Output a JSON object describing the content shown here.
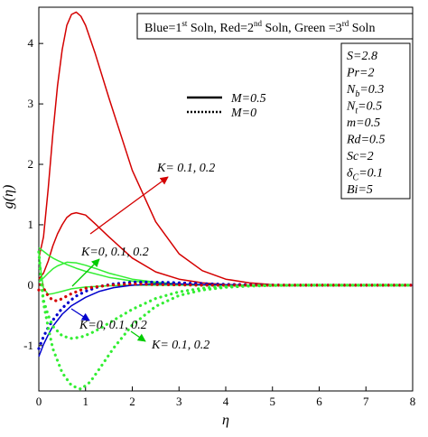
{
  "chart_data": {
    "type": "line",
    "xlabel": "η",
    "ylabel": "g(η)",
    "xlim": [
      0,
      8
    ],
    "ylim": [
      -1.75,
      4.6
    ],
    "x_ticks": [
      "0",
      "1",
      "2",
      "3",
      "4",
      "5",
      "6",
      "7",
      "8"
    ],
    "y_ticks": [
      "-1",
      "0",
      "1",
      "2",
      "3",
      "4"
    ],
    "legend_title": {
      "p1": "Blue=1",
      "s1": "st",
      "p2": " Soln, Red=2",
      "s2": "nd",
      "p3": " Soln, Green =3",
      "s3": "rd",
      "p4": " Soln"
    },
    "line_legend": {
      "solid_label": "M=0.5",
      "dotted_label": "M=0"
    },
    "params": [
      {
        "lead": "S",
        "sub": "",
        "val": "=2.8"
      },
      {
        "lead": "Pr",
        "sub": "",
        "val": "=2"
      },
      {
        "lead": "N",
        "sub": "b",
        "val": "=0.3"
      },
      {
        "lead": "N",
        "sub": "t",
        "val": "=0.5"
      },
      {
        "lead": "m",
        "sub": "",
        "val": "=0.5"
      },
      {
        "lead": "Rd",
        "sub": "",
        "val": "=0.5"
      },
      {
        "lead": "Sc",
        "sub": "",
        "val": "=2"
      },
      {
        "lead": "δ",
        "sub": "C",
        "val": "=0.1"
      },
      {
        "lead": "Bi",
        "sub": "",
        "val": "=5"
      }
    ],
    "annotations": [
      {
        "id": "ann-red",
        "text": "K= 0.1, 0.2",
        "color": "#d40000"
      },
      {
        "id": "ann-green-up",
        "text": "K=0, 0.1, 0.2",
        "color": "#00cc00"
      },
      {
        "id": "ann-blue",
        "text": "K=0, 0.1, 0.2",
        "color": "#0000cc"
      },
      {
        "id": "ann-green-dn",
        "text": "K= 0.1, 0.2",
        "color": "#00cc00"
      }
    ],
    "series": [
      {
        "id": "red-solid-1",
        "color": "#d40000",
        "style": "solid",
        "x": [
          0,
          0.1,
          0.2,
          0.3,
          0.4,
          0.5,
          0.6,
          0.7,
          0.8,
          0.9,
          1.0,
          1.2,
          1.5,
          2.0,
          2.5,
          3.0,
          3.5,
          4.0,
          4.5,
          5.0,
          5.5,
          6.0,
          8.0
        ],
        "y": [
          0.45,
          0.8,
          1.6,
          2.5,
          3.3,
          3.9,
          4.3,
          4.48,
          4.52,
          4.45,
          4.3,
          3.85,
          3.1,
          1.9,
          1.05,
          0.52,
          0.24,
          0.1,
          0.04,
          0.01,
          0.0,
          0.0,
          0.0
        ]
      },
      {
        "id": "red-solid-2",
        "color": "#d40000",
        "style": "solid",
        "x": [
          0,
          0.1,
          0.2,
          0.3,
          0.4,
          0.5,
          0.6,
          0.7,
          0.8,
          1.0,
          1.2,
          1.5,
          2.0,
          2.5,
          3.0,
          3.5,
          4.0,
          4.5,
          5.0,
          8.0
        ],
        "y": [
          0.1,
          0.2,
          0.4,
          0.65,
          0.85,
          1.0,
          1.12,
          1.18,
          1.2,
          1.16,
          1.02,
          0.8,
          0.45,
          0.22,
          0.1,
          0.04,
          0.01,
          0.0,
          0.0,
          0.0
        ]
      },
      {
        "id": "green-solid-1",
        "color": "#33ee33",
        "style": "solid",
        "x": [
          0,
          0.1,
          0.2,
          0.3,
          0.4,
          0.6,
          0.8,
          1.0,
          1.5,
          2.0,
          2.5,
          3.0,
          3.5,
          4.0,
          4.5,
          5.0,
          8.0
        ],
        "y": [
          0.62,
          0.56,
          0.5,
          0.45,
          0.41,
          0.34,
          0.28,
          0.23,
          0.13,
          0.07,
          0.035,
          0.015,
          0.006,
          0.002,
          0.0,
          0.0,
          0.0
        ]
      },
      {
        "id": "green-solid-2",
        "color": "#33ee33",
        "style": "solid",
        "x": [
          0,
          0.1,
          0.2,
          0.3,
          0.4,
          0.6,
          0.8,
          1.0,
          1.2,
          1.5,
          2.0,
          2.5,
          3.0,
          3.5,
          4.0,
          4.5,
          5.0,
          8.0
        ],
        "y": [
          0.05,
          0.12,
          0.2,
          0.27,
          0.32,
          0.38,
          0.37,
          0.33,
          0.28,
          0.2,
          0.1,
          0.05,
          0.02,
          0.008,
          0.003,
          0.0,
          0.0,
          0.0
        ]
      },
      {
        "id": "green-solid-3",
        "color": "#33ee33",
        "style": "solid",
        "x": [
          0,
          0.05,
          0.1,
          0.2,
          0.3,
          0.5,
          0.7,
          1.0,
          1.5,
          2.0,
          2.5,
          3.0,
          3.5,
          4.0,
          5.0,
          8.0
        ],
        "y": [
          0.55,
          0.2,
          -0.05,
          -0.15,
          -0.14,
          -0.1,
          -0.06,
          -0.03,
          -0.01,
          0.0,
          0.0,
          0.0,
          0.0,
          0.0,
          0.0,
          0.0
        ]
      },
      {
        "id": "blue-solid",
        "color": "#0000cc",
        "style": "solid",
        "x": [
          0,
          0.1,
          0.2,
          0.3,
          0.5,
          0.7,
          1.0,
          1.3,
          1.6,
          2.0,
          2.5,
          3.0,
          3.5,
          4.0,
          4.5,
          5.0,
          5.5,
          8.0
        ],
        "y": [
          -1.18,
          -0.98,
          -0.82,
          -0.68,
          -0.48,
          -0.34,
          -0.2,
          -0.1,
          -0.04,
          0.0,
          0.02,
          0.02,
          0.01,
          0.005,
          0.0,
          0.0,
          0.0,
          0.0
        ]
      },
      {
        "id": "blue-dotted",
        "color": "#0000cc",
        "style": "dotted",
        "x": [
          0,
          0.1,
          0.2,
          0.3,
          0.5,
          0.7,
          0.8,
          1.0,
          1.3,
          1.6,
          2.0,
          2.5,
          3.0,
          3.5,
          4.0,
          4.5,
          5.0,
          5.5,
          6.0,
          8.0
        ],
        "y": [
          -1.05,
          -0.85,
          -0.7,
          -0.58,
          -0.38,
          -0.24,
          -0.18,
          -0.1,
          -0.02,
          0.02,
          0.05,
          0.05,
          0.04,
          0.025,
          0.015,
          0.008,
          0.003,
          0.0,
          0.0,
          0.0
        ]
      },
      {
        "id": "red-dotted",
        "color": "#d40000",
        "style": "dotted",
        "x": [
          0,
          0.05,
          0.1,
          0.2,
          0.3,
          0.4,
          0.5,
          0.7,
          1.0,
          1.5,
          2.0,
          2.5,
          3.0,
          3.5,
          4.0,
          8.0
        ],
        "y": [
          -0.08,
          0.05,
          -0.05,
          -0.18,
          -0.25,
          -0.26,
          -0.22,
          -0.14,
          -0.05,
          0.0,
          0.02,
          0.01,
          0.005,
          0.0,
          0.0,
          0.0
        ]
      },
      {
        "id": "green-dotted-1",
        "color": "#33ee33",
        "style": "dotted",
        "x": [
          0,
          0.05,
          0.1,
          0.2,
          0.3,
          0.5,
          0.7,
          0.9,
          1.1,
          1.3,
          1.6,
          2.0,
          2.5,
          3.0,
          3.5,
          4.0,
          4.5,
          5.0,
          5.5,
          6.0,
          8.0
        ],
        "y": [
          0.55,
          0.1,
          -0.3,
          -0.7,
          -1.05,
          -1.45,
          -1.66,
          -1.72,
          -1.6,
          -1.38,
          -1.04,
          -0.66,
          -0.35,
          -0.17,
          -0.08,
          -0.035,
          -0.015,
          -0.005,
          0.0,
          0.0,
          0.0
        ]
      },
      {
        "id": "green-dotted-2",
        "color": "#33ee33",
        "style": "dotted",
        "x": [
          0,
          0.05,
          0.1,
          0.2,
          0.3,
          0.5,
          0.7,
          0.9,
          1.1,
          1.3,
          1.6,
          2.0,
          2.5,
          3.0,
          3.5,
          4.0,
          4.5,
          5.0,
          5.5,
          6.0,
          8.0
        ],
        "y": [
          0.55,
          0.05,
          -0.25,
          -0.5,
          -0.68,
          -0.84,
          -0.88,
          -0.86,
          -0.8,
          -0.72,
          -0.58,
          -0.4,
          -0.22,
          -0.11,
          -0.05,
          -0.02,
          -0.008,
          -0.003,
          0.0,
          0.0,
          0.0
        ]
      }
    ]
  }
}
